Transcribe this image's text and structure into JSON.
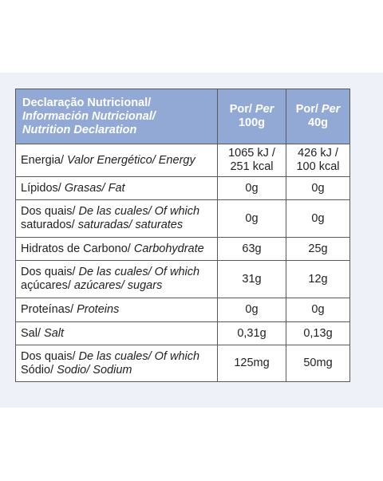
{
  "header": {
    "title_lines": [
      "Declaração Nutricional/",
      "Información Nutricional/",
      "Nutrition Declaration"
    ],
    "col_per100_lines": [
      "Por/ Per",
      "100g"
    ],
    "col_per40_lines": [
      "Por/ Per",
      "40g"
    ]
  },
  "rows": [
    {
      "label": "Energia/",
      "label_italic": " Valor Energético/ Energy",
      "v100": [
        "1065 kJ /",
        "251 kcal"
      ],
      "v40": [
        "426 kJ /",
        "100 kcal"
      ]
    },
    {
      "label": "Lípidos/",
      "label_italic": " Grasas/ Fat",
      "v100": [
        "0g"
      ],
      "v40": [
        "0g"
      ]
    },
    {
      "label_lines": [
        [
          "Dos quais/",
          " De las cuales/ Of which"
        ],
        [
          "saturados/",
          " saturadas/ saturates"
        ]
      ],
      "v100": [
        "0g"
      ],
      "v40": [
        "0g"
      ]
    },
    {
      "label": "Hidratos de Carbono/",
      "label_italic": " Carbohydrate",
      "v100": [
        "63g"
      ],
      "v40": [
        "25g"
      ]
    },
    {
      "label_lines": [
        [
          "Dos quais/",
          " De las cuales/ Of which"
        ],
        [
          "açúcares/",
          " azúcares/ sugars"
        ]
      ],
      "v100": [
        "31g"
      ],
      "v40": [
        "12g"
      ]
    },
    {
      "label": "Proteínas/",
      "label_italic": " Proteins",
      "v100": [
        "0g"
      ],
      "v40": [
        "0g"
      ]
    },
    {
      "label": "Sal/",
      "label_italic": " Salt",
      "v100": [
        "0,31g"
      ],
      "v40": [
        "0,13g"
      ]
    },
    {
      "label_lines": [
        [
          "Dos quais/",
          " De las cuales/ Of which"
        ],
        [
          "Sódio/",
          " Sodio/ Sodium"
        ]
      ],
      "v100": [
        "125mg"
      ],
      "v40": [
        "50mg"
      ]
    }
  ],
  "colors": {
    "header_bg": "#92a9d5",
    "panel_bg": "#eef1f7",
    "border": "#5a5a5a"
  }
}
